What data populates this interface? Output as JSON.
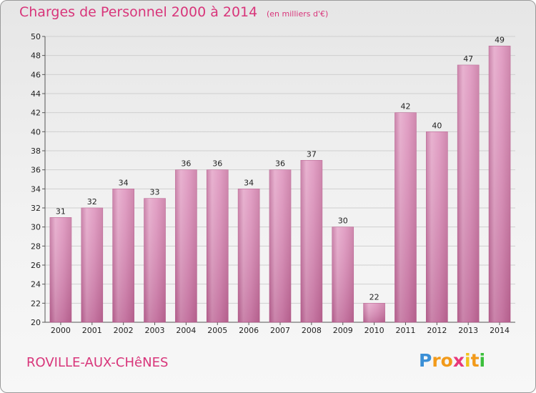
{
  "title": "Charges de Personnel 2000 à 2014",
  "subtitle": "(en milliers d'€)",
  "location": "ROVILLE-AUX-CHêNES",
  "logo": {
    "letters": [
      "P",
      "r",
      "o",
      "x",
      "i",
      "t",
      "i"
    ],
    "colors": [
      "#3b8fd6",
      "#f29a1a",
      "#f29a1a",
      "#e8387a",
      "#f2c21a",
      "#f29a1a",
      "#3bbf3b"
    ]
  },
  "chart_data": {
    "type": "bar",
    "categories": [
      "2000",
      "2001",
      "2002",
      "2003",
      "2004",
      "2005",
      "2006",
      "2007",
      "2008",
      "2009",
      "2010",
      "2011",
      "2012",
      "2013",
      "2014"
    ],
    "values": [
      31,
      32,
      34,
      33,
      36,
      36,
      34,
      36,
      37,
      30,
      22,
      42,
      40,
      47,
      49
    ],
    "ylim": [
      20,
      50
    ],
    "yticks": [
      20,
      22,
      24,
      26,
      28,
      30,
      32,
      34,
      36,
      38,
      40,
      42,
      44,
      46,
      48,
      50
    ],
    "grid": true,
    "bar_color": "#d9679f",
    "xlabel": "",
    "ylabel": ""
  }
}
